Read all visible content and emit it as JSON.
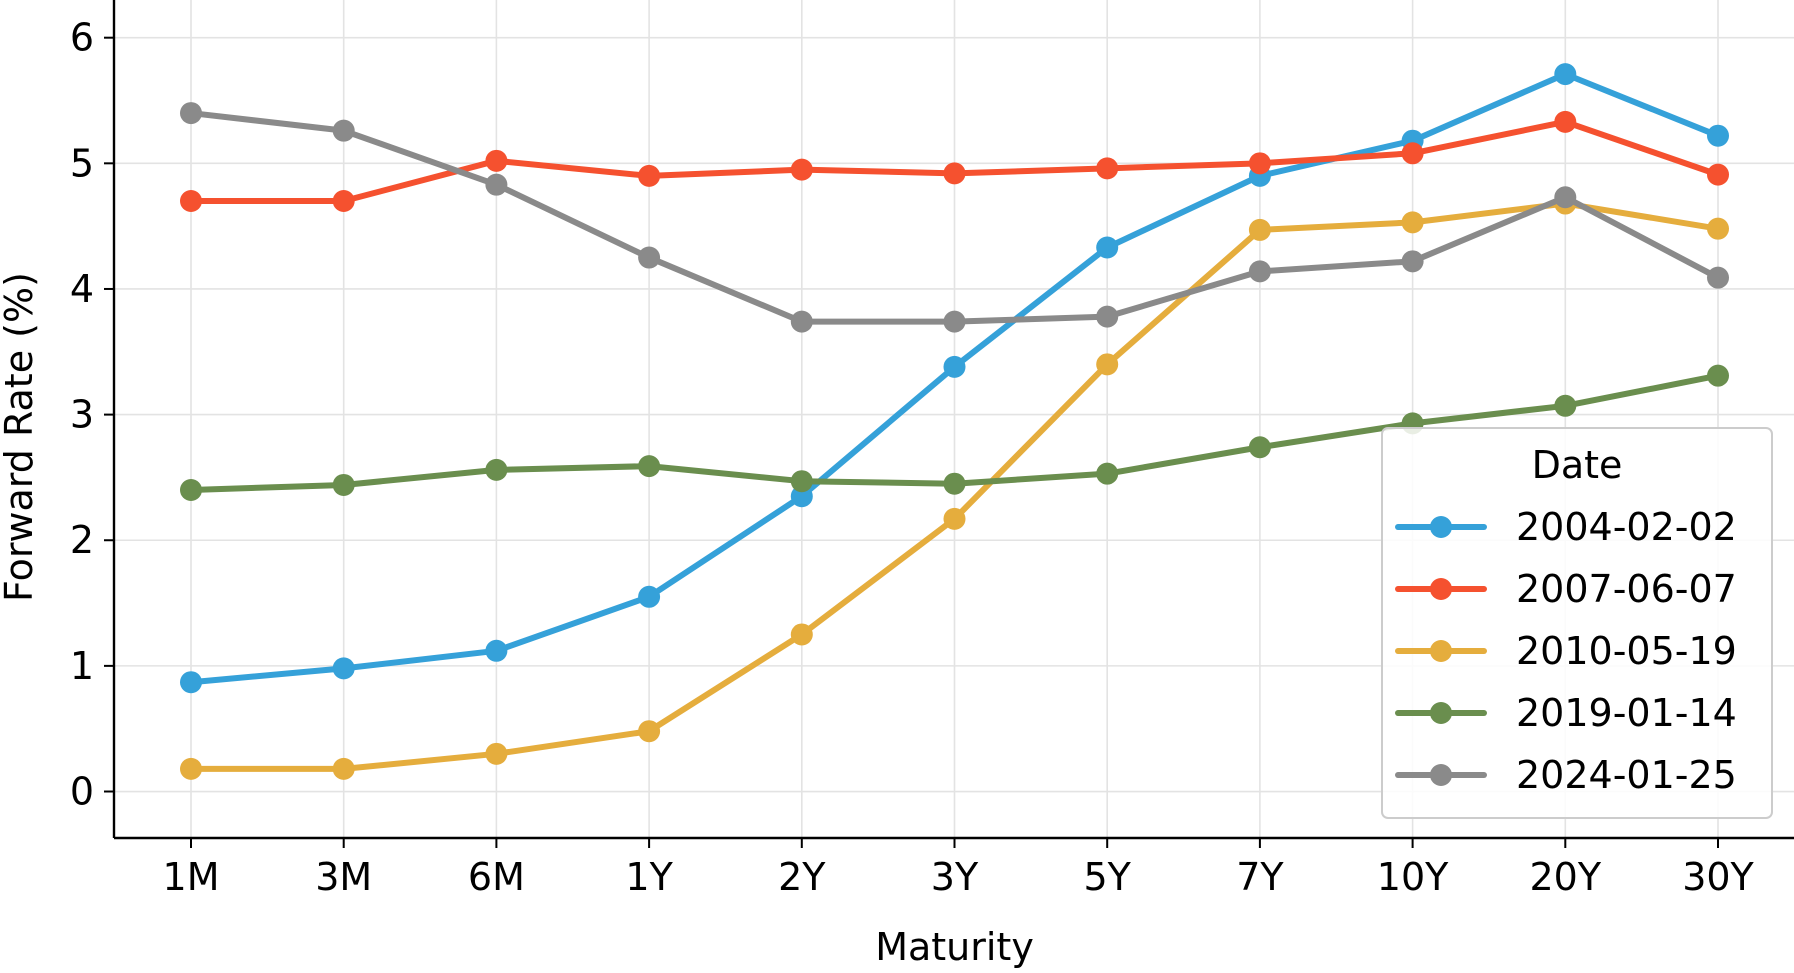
{
  "chart_data": {
    "type": "line",
    "title": "",
    "xlabel": "Maturity",
    "ylabel": "Forward Rate (%)",
    "categories": [
      "1M",
      "3M",
      "6M",
      "1Y",
      "2Y",
      "3Y",
      "5Y",
      "7Y",
      "10Y",
      "20Y",
      "30Y"
    ],
    "yticks": [
      "0",
      "1",
      "2",
      "3",
      "4",
      "5",
      "6"
    ],
    "ylim": [
      -0.37,
      6.3
    ],
    "grid": true,
    "legend": {
      "title": "Date",
      "position": "lower-right"
    },
    "series": [
      {
        "name": "2004-02-02",
        "color": "#35a1d9",
        "values": [
          0.87,
          0.98,
          1.12,
          1.55,
          2.35,
          3.38,
          4.33,
          4.9,
          5.18,
          5.71,
          5.22
        ]
      },
      {
        "name": "2007-06-07",
        "color": "#f5512f",
        "values": [
          4.7,
          4.7,
          5.02,
          4.9,
          4.95,
          4.92,
          4.96,
          5.0,
          5.08,
          5.33,
          4.91
        ]
      },
      {
        "name": "2010-05-19",
        "color": "#e5ad3d",
        "values": [
          0.18,
          0.18,
          0.3,
          0.48,
          1.25,
          2.17,
          3.4,
          4.47,
          4.53,
          4.68,
          4.48
        ]
      },
      {
        "name": "2019-01-14",
        "color": "#6a8e4e",
        "values": [
          2.4,
          2.44,
          2.56,
          2.59,
          2.47,
          2.45,
          2.53,
          2.74,
          2.93,
          3.07,
          3.31
        ]
      },
      {
        "name": "2024-01-25",
        "color": "#8a8a8a",
        "values": [
          5.4,
          5.26,
          4.83,
          4.25,
          3.74,
          3.74,
          3.78,
          4.14,
          4.22,
          4.73,
          4.09
        ]
      }
    ]
  }
}
